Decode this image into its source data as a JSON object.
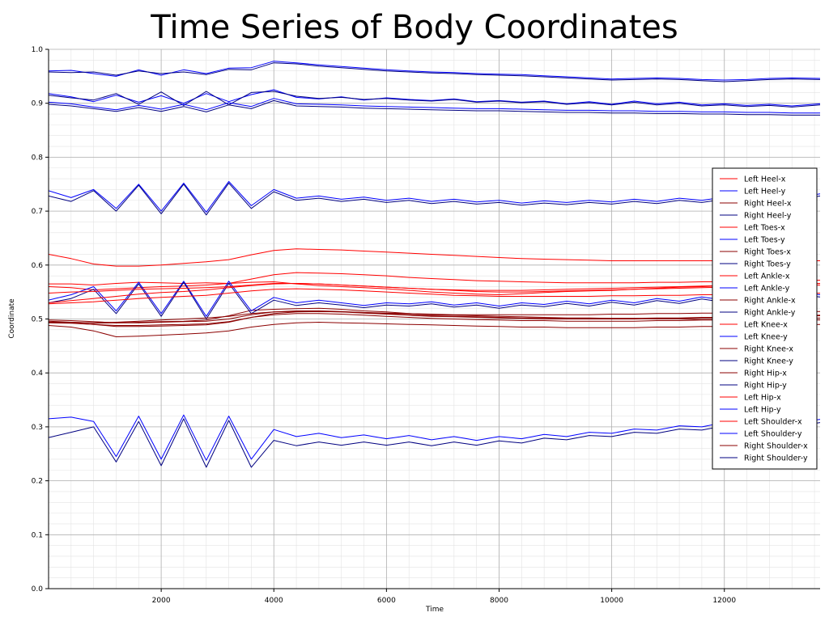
{
  "chart_data": {
    "type": "line",
    "title": "Time Series of Body Coordinates",
    "xlabel": "Time",
    "ylabel": "Coordinate",
    "xlim": [
      0,
      13700
    ],
    "ylim": [
      0,
      1.0
    ],
    "x_ticks": [
      "2000",
      "4000",
      "6000",
      "8000",
      "10000",
      "12000"
    ],
    "x_tick_values": [
      2000,
      4000,
      6000,
      8000,
      10000,
      12000
    ],
    "y_ticks": [
      "0.0",
      "0.1",
      "0.2",
      "0.3",
      "0.4",
      "0.5",
      "0.6",
      "0.7",
      "0.8",
      "0.9",
      "1.0"
    ],
    "y_tick_values": [
      0.0,
      0.1,
      0.2,
      0.3,
      0.4,
      0.5,
      0.6,
      0.7,
      0.8,
      0.9,
      1.0
    ],
    "grid": true,
    "legend_position": "right",
    "x": [
      0,
      400,
      800,
      1200,
      1600,
      2000,
      2400,
      2800,
      3200,
      3600,
      4000,
      4400,
      4800,
      5200,
      5600,
      6000,
      6400,
      6800,
      7200,
      7600,
      8000,
      8400,
      8800,
      9200,
      9600,
      10000,
      10400,
      10800,
      11200,
      11600,
      12000,
      12400,
      12800,
      13200,
      13700
    ],
    "series": [
      {
        "name": "Left Heel-x",
        "color": "#ff0000",
        "values": [
          0.565,
          0.565,
          0.563,
          0.566,
          0.568,
          0.567,
          0.566,
          0.567,
          0.566,
          0.568,
          0.569,
          0.565,
          0.562,
          0.56,
          0.558,
          0.556,
          0.553,
          0.55,
          0.548,
          0.546,
          0.545,
          0.547,
          0.549,
          0.551,
          0.552,
          0.553,
          0.555,
          0.557,
          0.559,
          0.56,
          0.562,
          0.563,
          0.564,
          0.565,
          0.566
        ]
      },
      {
        "name": "Left Heel-y",
        "color": "#0000ff",
        "values": [
          0.918,
          0.912,
          0.903,
          0.915,
          0.902,
          0.914,
          0.9,
          0.918,
          0.903,
          0.916,
          0.925,
          0.911,
          0.908,
          0.912,
          0.906,
          0.91,
          0.907,
          0.905,
          0.908,
          0.903,
          0.905,
          0.902,
          0.904,
          0.899,
          0.903,
          0.898,
          0.904,
          0.899,
          0.902,
          0.897,
          0.899,
          0.896,
          0.898,
          0.895,
          0.899
        ]
      },
      {
        "name": "Right Heel-x",
        "color": "#8b0000",
        "values": [
          0.496,
          0.494,
          0.492,
          0.493,
          0.494,
          0.495,
          0.496,
          0.498,
          0.506,
          0.516,
          0.518,
          0.519,
          0.52,
          0.518,
          0.515,
          0.513,
          0.51,
          0.508,
          0.507,
          0.506,
          0.505,
          0.504,
          0.503,
          0.502,
          0.502,
          0.501,
          0.501,
          0.5,
          0.5,
          0.499,
          0.499,
          0.5,
          0.5,
          0.499,
          0.498
        ]
      },
      {
        "name": "Right Heel-y",
        "color": "#000080",
        "values": [
          0.915,
          0.91,
          0.906,
          0.918,
          0.898,
          0.921,
          0.896,
          0.922,
          0.897,
          0.92,
          0.922,
          0.913,
          0.909,
          0.911,
          0.907,
          0.909,
          0.906,
          0.904,
          0.907,
          0.902,
          0.904,
          0.901,
          0.903,
          0.898,
          0.901,
          0.897,
          0.902,
          0.897,
          0.9,
          0.895,
          0.897,
          0.894,
          0.896,
          0.893,
          0.897
        ]
      },
      {
        "name": "Left Toes-x",
        "color": "#ff0000",
        "values": [
          0.62,
          0.612,
          0.602,
          0.598,
          0.598,
          0.6,
          0.603,
          0.606,
          0.61,
          0.619,
          0.627,
          0.63,
          0.629,
          0.628,
          0.626,
          0.624,
          0.622,
          0.62,
          0.618,
          0.616,
          0.614,
          0.612,
          0.611,
          0.61,
          0.609,
          0.608,
          0.608,
          0.608,
          0.608,
          0.608,
          0.608,
          0.608,
          0.608,
          0.608,
          0.608
        ]
      },
      {
        "name": "Left Toes-y",
        "color": "#0000ff",
        "values": [
          0.96,
          0.961,
          0.955,
          0.95,
          0.962,
          0.952,
          0.962,
          0.955,
          0.965,
          0.966,
          0.978,
          0.975,
          0.971,
          0.968,
          0.965,
          0.962,
          0.96,
          0.958,
          0.957,
          0.955,
          0.954,
          0.953,
          0.951,
          0.949,
          0.947,
          0.945,
          0.946,
          0.947,
          0.946,
          0.944,
          0.943,
          0.944,
          0.946,
          0.947,
          0.946
        ]
      },
      {
        "name": "Right Toes-x",
        "color": "#8b0000",
        "values": [
          0.488,
          0.485,
          0.478,
          0.467,
          0.468,
          0.47,
          0.472,
          0.474,
          0.478,
          0.485,
          0.49,
          0.493,
          0.494,
          0.493,
          0.492,
          0.491,
          0.49,
          0.489,
          0.488,
          0.487,
          0.486,
          0.485,
          0.485,
          0.484,
          0.484,
          0.484,
          0.484,
          0.485,
          0.485,
          0.486,
          0.486,
          0.487,
          0.488,
          0.489,
          0.49
        ]
      },
      {
        "name": "Right Toes-y",
        "color": "#000080",
        "values": [
          0.958,
          0.957,
          0.958,
          0.952,
          0.96,
          0.955,
          0.958,
          0.953,
          0.963,
          0.962,
          0.975,
          0.973,
          0.969,
          0.966,
          0.963,
          0.96,
          0.958,
          0.956,
          0.955,
          0.953,
          0.952,
          0.951,
          0.949,
          0.947,
          0.945,
          0.943,
          0.944,
          0.945,
          0.944,
          0.942,
          0.94,
          0.942,
          0.944,
          0.945,
          0.944
        ]
      },
      {
        "name": "Left Ankle-x",
        "color": "#ff0000",
        "values": [
          0.56,
          0.558,
          0.554,
          0.556,
          0.558,
          0.56,
          0.561,
          0.563,
          0.566,
          0.574,
          0.582,
          0.586,
          0.585,
          0.584,
          0.582,
          0.58,
          0.577,
          0.575,
          0.573,
          0.571,
          0.57,
          0.569,
          0.568,
          0.567,
          0.567,
          0.567,
          0.567,
          0.568,
          0.568,
          0.569,
          0.569,
          0.57,
          0.57,
          0.571,
          0.572
        ]
      },
      {
        "name": "Left Ankle-y",
        "color": "#0000ff",
        "values": [
          0.535,
          0.545,
          0.56,
          0.515,
          0.568,
          0.51,
          0.57,
          0.505,
          0.57,
          0.515,
          0.54,
          0.53,
          0.535,
          0.53,
          0.525,
          0.53,
          0.528,
          0.532,
          0.526,
          0.53,
          0.524,
          0.53,
          0.527,
          0.533,
          0.528,
          0.535,
          0.53,
          0.538,
          0.533,
          0.541,
          0.535,
          0.545,
          0.538,
          0.55,
          0.545
        ]
      },
      {
        "name": "Right Ankle-x",
        "color": "#8b0000",
        "values": [
          0.494,
          0.493,
          0.49,
          0.486,
          0.486,
          0.487,
          0.488,
          0.489,
          0.494,
          0.503,
          0.51,
          0.513,
          0.514,
          0.513,
          0.511,
          0.509,
          0.507,
          0.505,
          0.504,
          0.503,
          0.502,
          0.501,
          0.5,
          0.5,
          0.5,
          0.5,
          0.5,
          0.501,
          0.501,
          0.502,
          0.502,
          0.503,
          0.504,
          0.505,
          0.506
        ]
      },
      {
        "name": "Right Ankle-y",
        "color": "#000080",
        "values": [
          0.53,
          0.538,
          0.555,
          0.51,
          0.565,
          0.505,
          0.568,
          0.5,
          0.566,
          0.51,
          0.535,
          0.525,
          0.53,
          0.526,
          0.521,
          0.526,
          0.524,
          0.528,
          0.522,
          0.526,
          0.52,
          0.526,
          0.523,
          0.529,
          0.524,
          0.531,
          0.526,
          0.534,
          0.529,
          0.537,
          0.531,
          0.541,
          0.534,
          0.546,
          0.541
        ]
      },
      {
        "name": "Left Knee-x",
        "color": "#ff0000",
        "values": [
          0.548,
          0.55,
          0.551,
          0.553,
          0.555,
          0.556,
          0.557,
          0.558,
          0.56,
          0.563,
          0.566,
          0.566,
          0.565,
          0.563,
          0.561,
          0.559,
          0.557,
          0.555,
          0.553,
          0.551,
          0.55,
          0.55,
          0.551,
          0.552,
          0.553,
          0.554,
          0.555,
          0.556,
          0.557,
          0.558,
          0.559,
          0.56,
          0.561,
          0.562,
          0.563
        ]
      },
      {
        "name": "Left Knee-y",
        "color": "#0000ff",
        "values": [
          0.738,
          0.725,
          0.74,
          0.705,
          0.75,
          0.7,
          0.752,
          0.698,
          0.755,
          0.71,
          0.74,
          0.724,
          0.728,
          0.722,
          0.726,
          0.72,
          0.724,
          0.718,
          0.722,
          0.717,
          0.72,
          0.715,
          0.719,
          0.716,
          0.72,
          0.717,
          0.722,
          0.718,
          0.724,
          0.72,
          0.726,
          0.722,
          0.728,
          0.724,
          0.732
        ]
      },
      {
        "name": "Right Knee-x",
        "color": "#8b0000",
        "values": [
          0.498,
          0.497,
          0.495,
          0.493,
          0.493,
          0.494,
          0.495,
          0.496,
          0.5,
          0.508,
          0.513,
          0.515,
          0.515,
          0.514,
          0.512,
          0.51,
          0.508,
          0.506,
          0.505,
          0.504,
          0.503,
          0.502,
          0.502,
          0.501,
          0.501,
          0.501,
          0.501,
          0.502,
          0.502,
          0.503,
          0.503,
          0.504,
          0.505,
          0.506,
          0.507
        ]
      },
      {
        "name": "Right Knee-y",
        "color": "#000080",
        "values": [
          0.728,
          0.718,
          0.738,
          0.7,
          0.748,
          0.695,
          0.75,
          0.693,
          0.752,
          0.705,
          0.736,
          0.72,
          0.724,
          0.718,
          0.722,
          0.716,
          0.72,
          0.714,
          0.718,
          0.713,
          0.716,
          0.711,
          0.715,
          0.712,
          0.716,
          0.713,
          0.718,
          0.714,
          0.72,
          0.716,
          0.722,
          0.718,
          0.724,
          0.72,
          0.728
        ]
      },
      {
        "name": "Right Hip-x",
        "color": "#8b0000",
        "values": [
          0.494,
          0.494,
          0.493,
          0.494,
          0.496,
          0.498,
          0.5,
          0.502,
          0.505,
          0.51,
          0.513,
          0.514,
          0.514,
          0.513,
          0.512,
          0.511,
          0.51,
          0.509,
          0.508,
          0.508,
          0.508,
          0.508,
          0.508,
          0.508,
          0.508,
          0.509,
          0.509,
          0.51,
          0.51,
          0.511,
          0.511,
          0.512,
          0.512,
          0.513,
          0.514
        ]
      },
      {
        "name": "Right Hip-y",
        "color": "#000080",
        "values": [
          0.898,
          0.895,
          0.89,
          0.885,
          0.892,
          0.885,
          0.894,
          0.884,
          0.897,
          0.89,
          0.905,
          0.895,
          0.894,
          0.893,
          0.891,
          0.89,
          0.889,
          0.888,
          0.887,
          0.886,
          0.886,
          0.885,
          0.884,
          0.883,
          0.883,
          0.882,
          0.882,
          0.881,
          0.881,
          0.88,
          0.88,
          0.879,
          0.879,
          0.878,
          0.878
        ]
      },
      {
        "name": "Left Hip-x",
        "color": "#ff0000",
        "values": [
          0.528,
          0.53,
          0.532,
          0.535,
          0.538,
          0.54,
          0.542,
          0.544,
          0.548,
          0.552,
          0.555,
          0.556,
          0.555,
          0.554,
          0.552,
          0.55,
          0.548,
          0.546,
          0.544,
          0.543,
          0.542,
          0.542,
          0.542,
          0.542,
          0.542,
          0.543,
          0.543,
          0.544,
          0.544,
          0.545,
          0.545,
          0.546,
          0.546,
          0.547,
          0.548
        ]
      },
      {
        "name": "Left Hip-y",
        "color": "#0000ff",
        "values": [
          0.902,
          0.899,
          0.893,
          0.888,
          0.896,
          0.889,
          0.898,
          0.888,
          0.901,
          0.894,
          0.909,
          0.899,
          0.898,
          0.897,
          0.895,
          0.894,
          0.893,
          0.892,
          0.891,
          0.89,
          0.89,
          0.889,
          0.888,
          0.887,
          0.887,
          0.886,
          0.886,
          0.885,
          0.885,
          0.884,
          0.884,
          0.883,
          0.883,
          0.882,
          0.882
        ]
      },
      {
        "name": "Left Shoulder-x",
        "color": "#ff0000",
        "values": [
          0.53,
          0.534,
          0.538,
          0.542,
          0.546,
          0.549,
          0.551,
          0.554,
          0.558,
          0.562,
          0.565,
          0.566,
          0.565,
          0.563,
          0.561,
          0.559,
          0.557,
          0.555,
          0.554,
          0.553,
          0.553,
          0.553,
          0.554,
          0.555,
          0.556,
          0.557,
          0.558,
          0.559,
          0.56,
          0.561,
          0.562,
          0.563,
          0.564,
          0.565,
          0.566
        ]
      },
      {
        "name": "Left Shoulder-y",
        "color": "#0000ff",
        "values": [
          0.315,
          0.318,
          0.31,
          0.245,
          0.32,
          0.24,
          0.322,
          0.238,
          0.32,
          0.24,
          0.295,
          0.282,
          0.288,
          0.28,
          0.285,
          0.278,
          0.284,
          0.276,
          0.282,
          0.275,
          0.282,
          0.278,
          0.286,
          0.282,
          0.29,
          0.288,
          0.296,
          0.294,
          0.302,
          0.3,
          0.308,
          0.305,
          0.312,
          0.306,
          0.314
        ]
      },
      {
        "name": "Right Shoulder-x",
        "color": "#8b0000",
        "values": [
          0.493,
          0.492,
          0.49,
          0.488,
          0.488,
          0.489,
          0.49,
          0.491,
          0.495,
          0.503,
          0.508,
          0.51,
          0.51,
          0.509,
          0.507,
          0.505,
          0.503,
          0.501,
          0.5,
          0.499,
          0.498,
          0.497,
          0.497,
          0.496,
          0.496,
          0.496,
          0.496,
          0.497,
          0.497,
          0.498,
          0.498,
          0.499,
          0.5,
          0.501,
          0.502
        ]
      },
      {
        "name": "Right Shoulder-y",
        "color": "#000080",
        "values": [
          0.28,
          0.29,
          0.3,
          0.235,
          0.31,
          0.228,
          0.315,
          0.225,
          0.312,
          0.225,
          0.275,
          0.265,
          0.272,
          0.266,
          0.272,
          0.266,
          0.272,
          0.265,
          0.272,
          0.266,
          0.274,
          0.27,
          0.279,
          0.276,
          0.284,
          0.282,
          0.29,
          0.288,
          0.296,
          0.294,
          0.302,
          0.299,
          0.306,
          0.3,
          0.308
        ]
      }
    ]
  }
}
